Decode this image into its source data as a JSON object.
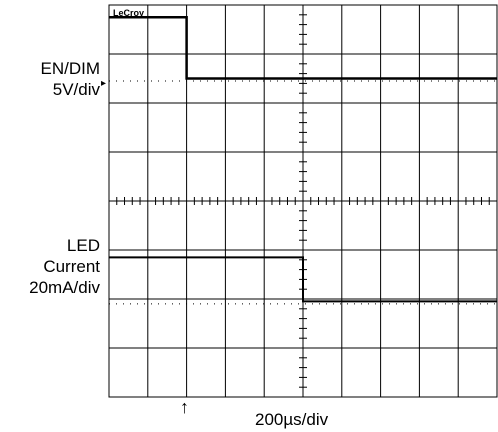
{
  "chart_data": {
    "type": "line",
    "brand": "LeCroy",
    "grid_divisions": {
      "x": 10,
      "y": 8
    },
    "timebase_label": "200µs/div",
    "trigger_marker": "↑",
    "channel_marker": "▸",
    "channels": [
      {
        "label_lines": [
          "EN/DIM",
          "5V/div"
        ],
        "units_per_div": 5,
        "unit": "V",
        "x_div": [
          0,
          2,
          2,
          10
        ],
        "y_div": [
          -0.25,
          -0.25,
          -1.5,
          -1.5
        ]
      },
      {
        "label_lines": [
          "LED",
          "Current",
          "20mA/div"
        ],
        "units_per_div": 20,
        "unit": "mA",
        "x_div": [
          0,
          5,
          5,
          10
        ],
        "y_div": [
          -1.15,
          -1.15,
          -2.05,
          -2.05
        ]
      }
    ],
    "colors": {
      "grid": "#000000",
      "trace": "#000000",
      "background": "#ffffff"
    }
  }
}
